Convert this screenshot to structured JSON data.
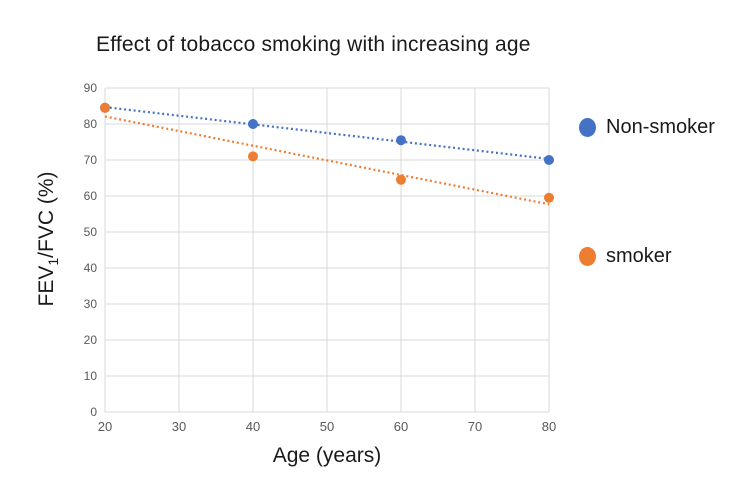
{
  "title": "Effect of tobacco smoking with increasing age",
  "axis": {
    "xlabel": "Age (years)",
    "ylabel_prefix": "FEV",
    "ylabel_sub": "1",
    "ylabel_suffix": "/FVC (%)"
  },
  "legend": {
    "items": [
      {
        "label": "Non-smoker",
        "color": "#4472C4"
      },
      {
        "label": "smoker",
        "color": "#ED7D31"
      }
    ]
  },
  "colors": {
    "gridline": "#D9D9D9",
    "tick_text": "#595959",
    "non_smoker": "#4472C4",
    "smoker": "#ED7D31"
  },
  "chart_data": {
    "type": "scatter",
    "title": "Effect of tobacco smoking with increasing age",
    "xlabel": "Age (years)",
    "ylabel": "FEV1/FVC (%)",
    "xlim": [
      20,
      80
    ],
    "ylim": [
      0,
      90
    ],
    "x_ticks": [
      20,
      30,
      40,
      50,
      60,
      70,
      80
    ],
    "y_ticks": [
      0,
      10,
      20,
      30,
      40,
      50,
      60,
      70,
      80,
      90
    ],
    "grid": true,
    "legend_position": "right",
    "x": [
      20,
      40,
      60,
      80
    ],
    "series": [
      {
        "name": "Non-smoker",
        "color": "#4472C4",
        "values": [
          84.5,
          80,
          75.5,
          70
        ],
        "marker": "circle",
        "trendline": {
          "style": "dotted",
          "x": [
            20,
            80
          ],
          "y": [
            84.7,
            70.3
          ]
        }
      },
      {
        "name": "smoker",
        "color": "#ED7D31",
        "values": [
          84.5,
          71,
          64.5,
          59.5
        ],
        "marker": "circle",
        "trendline": {
          "style": "dotted",
          "x": [
            20,
            80
          ],
          "y": [
            82.1,
            57.7
          ]
        }
      }
    ]
  }
}
